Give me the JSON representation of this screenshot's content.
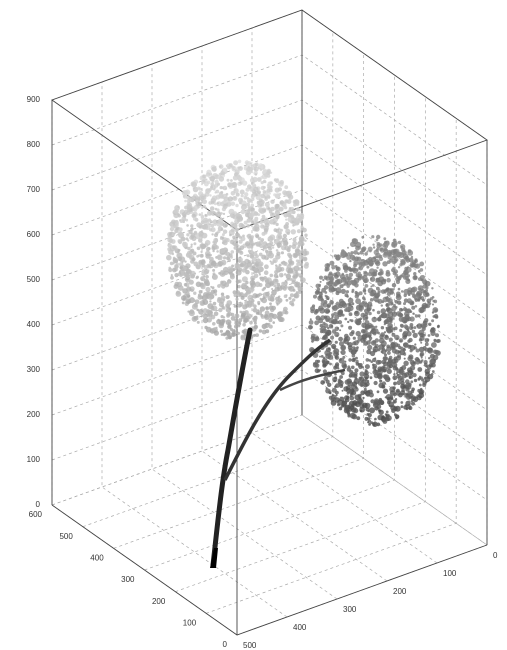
{
  "chart_data": {
    "type": "scatter3d",
    "xlim": [
      0,
      600
    ],
    "xticks": [
      0,
      100,
      200,
      300,
      400,
      500,
      600
    ],
    "ylim": [
      0,
      500
    ],
    "yticks": [
      0,
      100,
      200,
      300,
      400,
      500
    ],
    "zlim": [
      0,
      900
    ],
    "zticks": [
      0,
      100,
      200,
      300,
      400,
      500,
      600,
      700,
      800,
      900
    ],
    "grid": true
  }
}
